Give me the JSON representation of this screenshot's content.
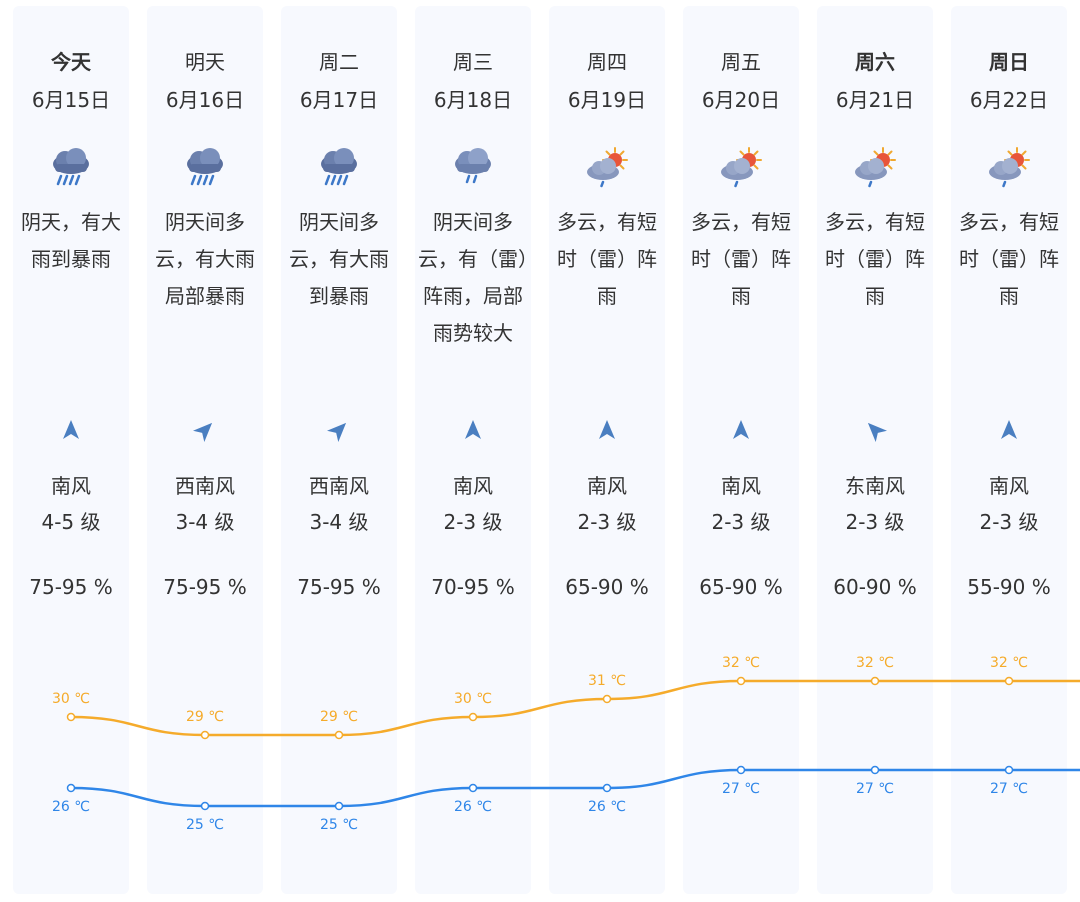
{
  "days": [
    {
      "day": "今天",
      "date": "6月15日",
      "weather": "阴天，有大雨到暴雨",
      "icon": "heavy-rain-icon",
      "wind_dir": "南风",
      "wind_level": "4-5 级",
      "humidity": "75-95 %",
      "bold": true,
      "arrow_rotation": 0
    },
    {
      "day": "明天",
      "date": "6月16日",
      "weather": "阴天间多云，有大雨局部暴雨",
      "icon": "heavy-rain-icon",
      "wind_dir": "西南风",
      "wind_level": "3-4 级",
      "humidity": "75-95 %",
      "bold": false,
      "arrow_rotation": 45
    },
    {
      "day": "周二",
      "date": "6月17日",
      "weather": "阴天间多云，有大雨到暴雨",
      "icon": "heavy-rain-icon",
      "wind_dir": "西南风",
      "wind_level": "3-4 级",
      "humidity": "75-95 %",
      "bold": false,
      "arrow_rotation": 45
    },
    {
      "day": "周三",
      "date": "6月18日",
      "weather": "阴天间多云，有（雷）阵雨，局部雨势较大",
      "icon": "thunder-shower-icon",
      "wind_dir": "南风",
      "wind_level": "2-3 级",
      "humidity": "70-95 %",
      "bold": false,
      "arrow_rotation": 0
    },
    {
      "day": "周四",
      "date": "6月19日",
      "weather": "多云，有短时（雷）阵雨",
      "icon": "partly-cloudy-shower-icon",
      "wind_dir": "南风",
      "wind_level": "2-3 级",
      "humidity": "65-90 %",
      "bold": false,
      "arrow_rotation": 0
    },
    {
      "day": "周五",
      "date": "6月20日",
      "weather": "多云，有短时（雷）阵雨",
      "icon": "partly-cloudy-shower-icon",
      "wind_dir": "南风",
      "wind_level": "2-3 级",
      "humidity": "65-90 %",
      "bold": false,
      "arrow_rotation": 0
    },
    {
      "day": "周六",
      "date": "6月21日",
      "weather": "多云，有短时（雷）阵雨",
      "icon": "partly-cloudy-shower-icon",
      "wind_dir": "东南风",
      "wind_level": "2-3 级",
      "humidity": "60-90 %",
      "bold": true,
      "arrow_rotation": -45
    },
    {
      "day": "周日",
      "date": "6月22日",
      "weather": "多云，有短时（雷）阵雨",
      "icon": "partly-cloudy-shower-icon",
      "wind_dir": "南风",
      "wind_level": "2-3 级",
      "humidity": "55-90 %",
      "bold": true,
      "arrow_rotation": 0
    }
  ],
  "colors": {
    "high": "#f5ab2b",
    "low": "#2f86e8",
    "arrow": "#4a7fc1",
    "column_bg": "#f7f9fe"
  },
  "chart_data": {
    "type": "line",
    "x": [
      "6月15日",
      "6月16日",
      "6月17日",
      "6月18日",
      "6月19日",
      "6月20日",
      "6月21日",
      "6月22日"
    ],
    "series": [
      {
        "key": "high",
        "values": [
          30,
          29,
          29,
          30,
          31,
          32,
          32,
          32
        ],
        "labels": [
          "30 ℃",
          "29 ℃",
          "29 ℃",
          "30 ℃",
          "31 ℃",
          "32 ℃",
          "32 ℃",
          "32 ℃"
        ]
      },
      {
        "key": "low",
        "values": [
          26,
          25,
          25,
          26,
          26,
          27,
          27,
          27
        ],
        "labels": [
          "26 ℃",
          "25 ℃",
          "25 ℃",
          "26 ℃",
          "26 ℃",
          "27 ℃",
          "27 ℃",
          "27 ℃"
        ]
      }
    ],
    "ylim": [
      24,
      33
    ],
    "grid": false,
    "legend": "none"
  }
}
